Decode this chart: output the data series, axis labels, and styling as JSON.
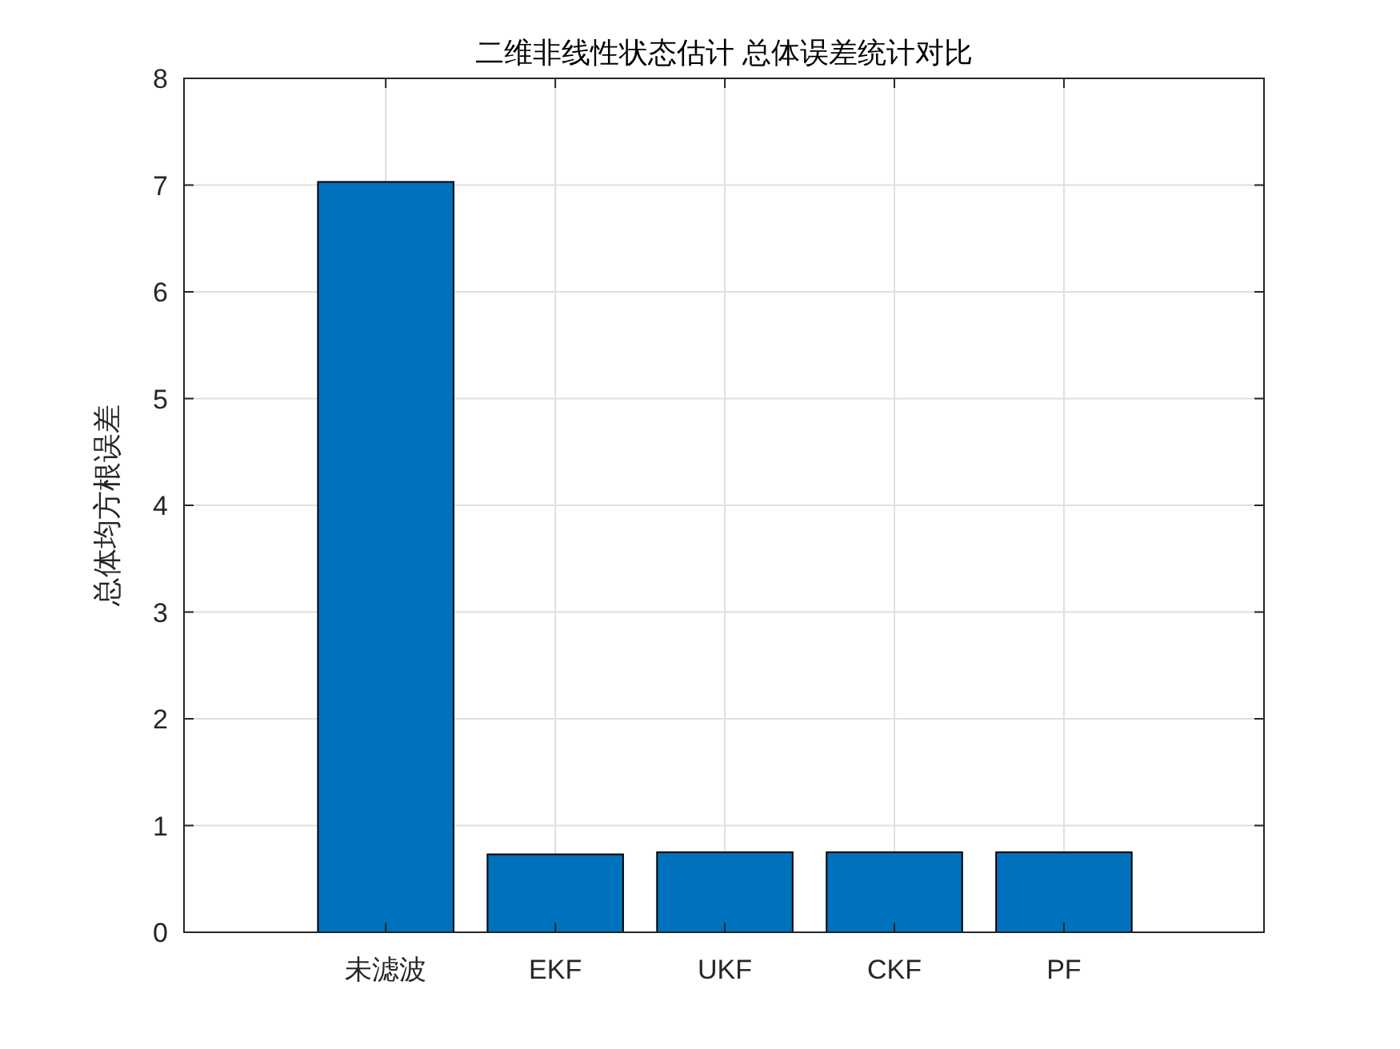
{
  "chart_data": {
    "type": "bar",
    "title": "二维非线性状态估计 总体误差统计对比",
    "ylabel": "总体均方根误差",
    "categories": [
      "未滤波",
      "EKF",
      "UKF",
      "CKF",
      "PF"
    ],
    "values": [
      7.03,
      0.73,
      0.75,
      0.75,
      0.75
    ],
    "color": "#0072bd",
    "ylim": [
      0,
      8
    ],
    "yticks": [
      0,
      1,
      2,
      3,
      4,
      5,
      6,
      7,
      8
    ],
    "grid": true
  }
}
